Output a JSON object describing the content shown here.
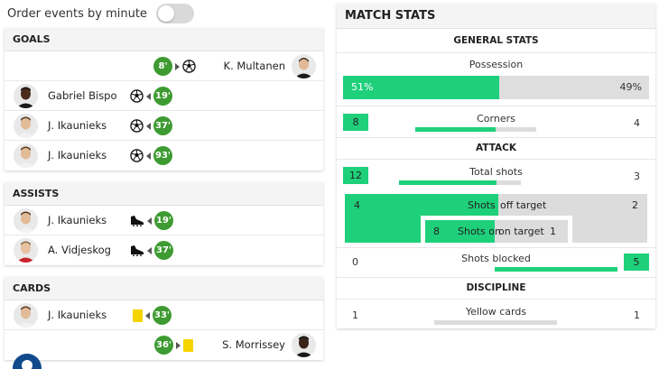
{
  "toggle": {
    "label": "Order events by minute",
    "on": false
  },
  "goals": {
    "title": "GOALS",
    "rows": [
      {
        "side": "right",
        "name": "K. Multanen",
        "minute": "8'",
        "icon": "soccer-ball-icon"
      },
      {
        "side": "left",
        "name": "Gabriel Bispo",
        "minute": "19'",
        "icon": "soccer-ball-icon"
      },
      {
        "side": "left",
        "name": "J. Ikaunieks",
        "minute": "37'",
        "icon": "soccer-ball-icon"
      },
      {
        "side": "left",
        "name": "J. Ikaunieks",
        "minute": "93'",
        "icon": "soccer-ball-icon"
      }
    ]
  },
  "assists": {
    "title": "ASSISTS",
    "rows": [
      {
        "side": "left",
        "name": "J. Ikaunieks",
        "minute": "19'",
        "icon": "football-boot-icon"
      },
      {
        "side": "left",
        "name": "A. Vidjeskog",
        "minute": "37'",
        "icon": "football-boot-icon"
      }
    ]
  },
  "cards": {
    "title": "CARDS",
    "rows": [
      {
        "side": "left",
        "name": "J. Ikaunieks",
        "minute": "33'",
        "icon": "yellow-card-icon"
      },
      {
        "side": "right",
        "name": "S. Morrissey",
        "minute": "36'",
        "icon": "yellow-card-icon"
      }
    ]
  },
  "stats": {
    "title": "MATCH STATS",
    "general_title": "GENERAL STATS",
    "possession": {
      "label": "Possession",
      "home": "51%",
      "away": "49%",
      "home_fraction": 0.51
    },
    "corners": {
      "label": "Corners",
      "home": "8",
      "away": "4"
    },
    "attack_title": "ATTACK",
    "total_shots": {
      "label": "Total shots",
      "home": "12",
      "away": "3"
    },
    "shots": {
      "label": "Shots",
      "off_label": "off target",
      "home_off": "4",
      "away_off": "2",
      "on_label_left": "Shots on",
      "on_label_right": "on target",
      "home_on": "8",
      "away_on": "1"
    },
    "shots_blocked": {
      "label": "Shots blocked",
      "home": "0",
      "away": "5"
    },
    "discipline_title": "DISCIPLINE",
    "yellow_cards": {
      "label": "Yellow cards",
      "home": "1",
      "away": "1"
    }
  },
  "colors": {
    "accent": "#1fd07a",
    "minute_badge": "#3e9b32",
    "yellow_card": "#f5d400",
    "help_button": "#114a8c"
  }
}
